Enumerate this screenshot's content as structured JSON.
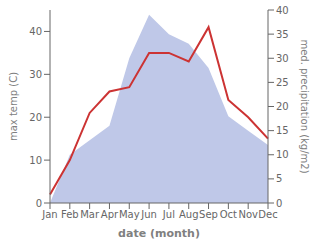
{
  "chart_data": {
    "type": "line",
    "categories": [
      "Jan",
      "Feb",
      "Mar",
      "Apr",
      "May",
      "Jun",
      "Jul",
      "Aug",
      "Sep",
      "Oct",
      "Nov",
      "Dec"
    ],
    "xlabel": "date (month)",
    "ylabel": "max temp (C)",
    "y2label": "med. precipitation (kg/m2)",
    "series": [
      {
        "type": "area",
        "axis": "y2",
        "color": "#bfc8e8",
        "values": [
          0,
          10,
          13,
          16,
          30,
          39,
          35,
          33,
          28,
          18,
          15,
          12
        ]
      },
      {
        "type": "line",
        "axis": "y",
        "color": "#cc3333",
        "values": [
          2,
          10,
          21,
          26,
          27,
          35,
          35,
          33,
          41,
          24,
          20,
          15
        ]
      }
    ],
    "ylim": [
      0,
      45
    ],
    "yticks": [
      0,
      10,
      20,
      30,
      40
    ],
    "y2lim": [
      0,
      40
    ],
    "y2ticks": [
      0,
      5,
      10,
      15,
      20,
      25,
      30,
      35,
      40
    ],
    "grid": false
  }
}
